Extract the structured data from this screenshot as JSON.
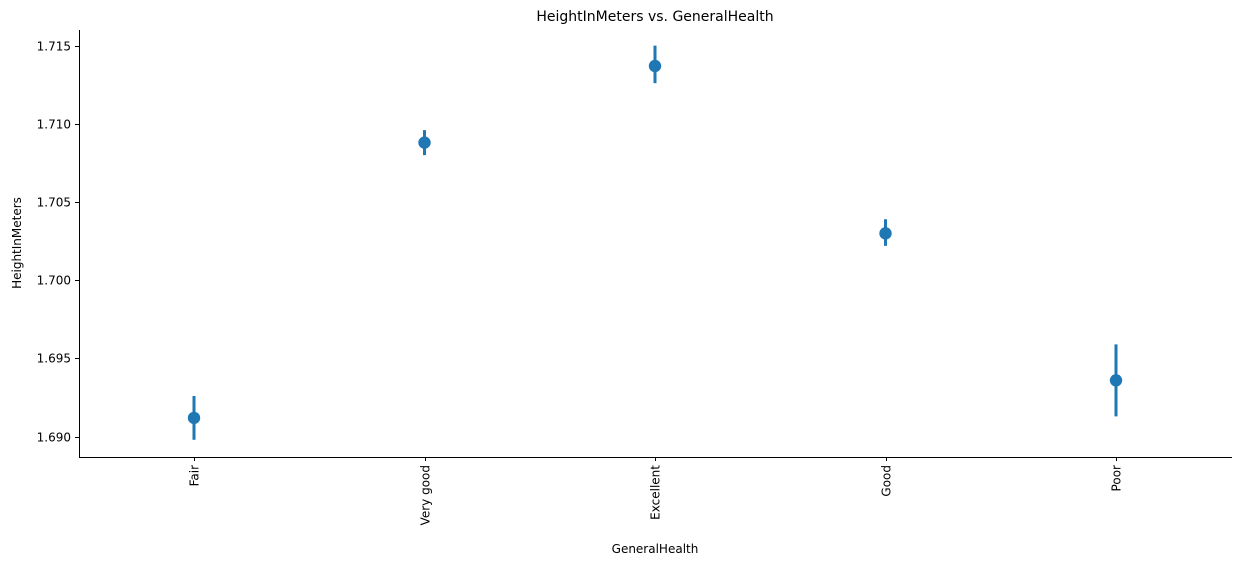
{
  "chart_data": {
    "type": "scatter",
    "subtype": "pointplot-with-errorbars",
    "title": "HeightInMeters vs. GeneralHealth",
    "xlabel": "GeneralHealth",
    "ylabel": "HeightInMeters",
    "categories": [
      "Fair",
      "Very good",
      "Excellent",
      "Good",
      "Poor"
    ],
    "values": [
      1.6912,
      1.7088,
      1.7137,
      1.703,
      1.6936
    ],
    "ci_low": [
      1.6898,
      1.708,
      1.7126,
      1.7022,
      1.6913
    ],
    "ci_high": [
      1.6926,
      1.7096,
      1.715,
      1.7039,
      1.6959
    ],
    "ylim": [
      1.6887,
      1.716
    ],
    "yticks": [
      1.69,
      1.695,
      1.7,
      1.705,
      1.71,
      1.715
    ],
    "ytick_labels": [
      "1.690",
      "1.695",
      "1.700",
      "1.705",
      "1.710",
      "1.715"
    ],
    "x_tick_rotation": 90,
    "grid": false,
    "legend": "none",
    "color": "#1f77b4"
  }
}
